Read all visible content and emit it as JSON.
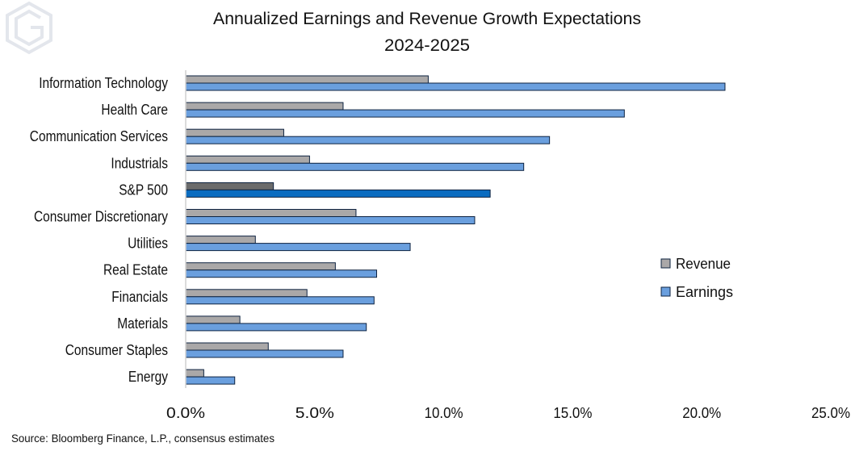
{
  "chart_data": {
    "type": "bar",
    "orientation": "horizontal",
    "title": "Annualized Earnings and Revenue Growth Expectations",
    "subtitle": "2024-2025",
    "categories": [
      "Information Technology",
      "Health Care",
      "Communication Services",
      "Industrials",
      "S&P 500",
      "Consumer Discretionary",
      "Utilities",
      "Real Estate",
      "Financials",
      "Materials",
      "Consumer Staples",
      "Energy"
    ],
    "series": [
      {
        "name": "Revenue",
        "color": "#aaa8a8",
        "highlight_color": "#6b6b6b",
        "values": [
          9.4,
          6.1,
          3.8,
          4.8,
          3.4,
          6.6,
          2.7,
          5.8,
          4.7,
          2.1,
          3.2,
          0.7
        ]
      },
      {
        "name": "Earnings",
        "color": "#6a9fde",
        "highlight_color": "#0a6cc0",
        "values": [
          20.9,
          17.0,
          14.1,
          13.1,
          11.8,
          11.2,
          8.7,
          7.4,
          7.3,
          7.0,
          6.1,
          1.9
        ]
      }
    ],
    "highlight_category": "S&P 500",
    "xlim": [
      0,
      25
    ],
    "xticks": [
      "0.0%",
      "5.0%",
      "10.0%",
      "15.0%",
      "20.0%",
      "25.0%"
    ],
    "xtick_values": [
      0,
      5,
      10,
      15,
      20,
      25
    ],
    "xlabel": "",
    "ylabel": "",
    "grid": false,
    "legend_position": "right",
    "source": "Source: Bloomberg Finance, L.P., consensus estimates"
  },
  "colors": {
    "bar_border": "#0e2341",
    "axis": "#d0d0d0",
    "logo": "#e3e6ec"
  }
}
